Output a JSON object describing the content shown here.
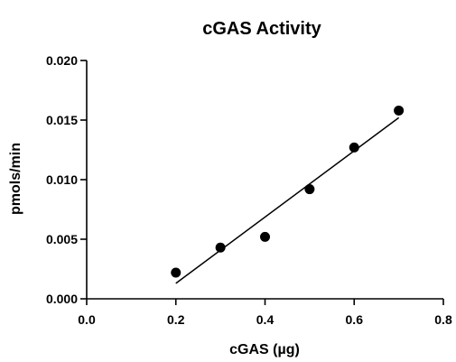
{
  "chart_data": {
    "type": "scatter",
    "title": "cGAS Activity",
    "xlabel": "cGAS (µg)",
    "ylabel": "pmols/min",
    "xlim": [
      0.0,
      0.8
    ],
    "ylim": [
      0.0,
      0.02
    ],
    "x_ticks": [
      "0.0",
      "0.2",
      "0.4",
      "0.6",
      "0.8"
    ],
    "y_ticks": [
      "0.000",
      "0.005",
      "0.010",
      "0.015",
      "0.020"
    ],
    "points": [
      {
        "x": 0.2,
        "y": 0.0022
      },
      {
        "x": 0.3,
        "y": 0.0043
      },
      {
        "x": 0.4,
        "y": 0.0052
      },
      {
        "x": 0.5,
        "y": 0.0092
      },
      {
        "x": 0.6,
        "y": 0.0127
      },
      {
        "x": 0.7,
        "y": 0.0158
      }
    ],
    "fit_line": {
      "x": [
        0.2,
        0.7
      ],
      "y": [
        0.0013,
        0.0152
      ]
    },
    "grid": false,
    "legend": "none"
  }
}
